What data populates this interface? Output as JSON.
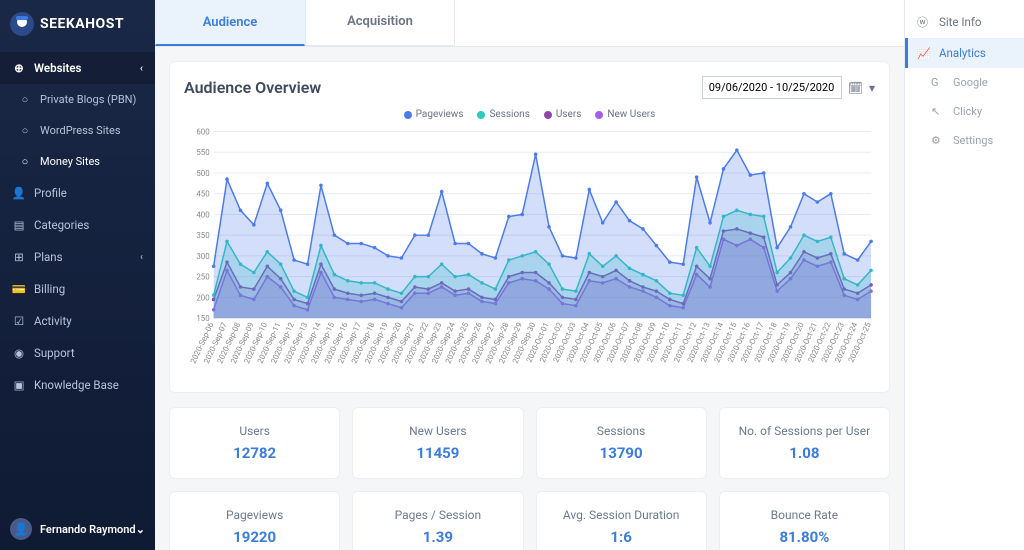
{
  "brand": "SEEKAHOST",
  "sidebar": {
    "websites_label": "Websites",
    "items": [
      {
        "label": "Private Blogs (PBN)",
        "icon": "○"
      },
      {
        "label": "WordPress Sites",
        "icon": "○"
      },
      {
        "label": "Money Sites",
        "icon": "○",
        "active": true
      }
    ],
    "nav": [
      {
        "label": "Profile",
        "icon": "👤"
      },
      {
        "label": "Categories",
        "icon": "▤"
      },
      {
        "label": "Plans",
        "icon": "⊞",
        "expandable": true
      },
      {
        "label": "Billing",
        "icon": "💳"
      },
      {
        "label": "Activity",
        "icon": "☑"
      },
      {
        "label": "Support",
        "icon": "◉"
      },
      {
        "label": "Knowledge Base",
        "icon": "▣"
      }
    ],
    "user": "Fernando Raymond"
  },
  "tabs": [
    {
      "label": "Audience",
      "active": true
    },
    {
      "label": "Acquisition"
    }
  ],
  "overview": {
    "title": "Audience Overview",
    "date_range": "09/06/2020 - 10/25/2020"
  },
  "chart": {
    "type": "line-area",
    "ylim": [
      150,
      600
    ],
    "ytick_step": 50,
    "background_color": "#ffffff",
    "grid_color": "#e8ebf0",
    "label_fontsize": 8,
    "series": [
      {
        "name": "Pageviews",
        "color": "#4b7bec"
      },
      {
        "name": "Sessions",
        "color": "#2bcbba"
      },
      {
        "name": "Users",
        "color": "#8e44ad"
      },
      {
        "name": "New Users",
        "color": "#a55eea"
      }
    ],
    "dates": [
      "2020-Sep-06",
      "2020-Sep-07",
      "2020-Sep-08",
      "2020-Sep-09",
      "2020-Sep-10",
      "2020-Sep-11",
      "2020-Sep-12",
      "2020-Sep-13",
      "2020-Sep-14",
      "2020-Sep-15",
      "2020-Sep-16",
      "2020-Sep-17",
      "2020-Sep-18",
      "2020-Sep-19",
      "2020-Sep-20",
      "2020-Sep-21",
      "2020-Sep-22",
      "2020-Sep-23",
      "2020-Sep-24",
      "2020-Sep-25",
      "2020-Sep-26",
      "2020-Sep-27",
      "2020-Sep-28",
      "2020-Sep-29",
      "2020-Sep-30",
      "2020-Oct-01",
      "2020-Oct-02",
      "2020-Oct-03",
      "2020-Oct-04",
      "2020-Oct-05",
      "2020-Oct-06",
      "2020-Oct-07",
      "2020-Oct-08",
      "2020-Oct-09",
      "2020-Oct-10",
      "2020-Oct-11",
      "2020-Oct-12",
      "2020-Oct-13",
      "2020-Oct-14",
      "2020-Oct-15",
      "2020-Oct-16",
      "2020-Oct-17",
      "2020-Oct-18",
      "2020-Oct-19",
      "2020-Oct-20",
      "2020-Oct-21",
      "2020-Oct-22",
      "2020-Oct-23",
      "2020-Oct-24",
      "2020-Oct-25"
    ],
    "values": {
      "Pageviews": [
        275,
        485,
        410,
        375,
        475,
        410,
        290,
        280,
        470,
        350,
        330,
        330,
        320,
        300,
        295,
        350,
        350,
        455,
        330,
        330,
        305,
        295,
        395,
        400,
        545,
        370,
        300,
        295,
        460,
        380,
        430,
        385,
        365,
        325,
        285,
        280,
        490,
        380,
        510,
        555,
        495,
        500,
        320,
        370,
        450,
        430,
        450,
        305,
        290,
        335
      ],
      "Sessions": [
        205,
        335,
        280,
        260,
        310,
        280,
        215,
        200,
        325,
        255,
        240,
        235,
        235,
        220,
        210,
        250,
        250,
        280,
        250,
        255,
        235,
        220,
        290,
        300,
        310,
        280,
        220,
        215,
        305,
        275,
        300,
        270,
        255,
        240,
        210,
        205,
        320,
        275,
        395,
        410,
        400,
        395,
        260,
        295,
        350,
        335,
        345,
        245,
        230,
        265
      ],
      "Users": [
        195,
        285,
        225,
        220,
        275,
        245,
        195,
        185,
        280,
        220,
        210,
        205,
        210,
        200,
        190,
        225,
        220,
        235,
        215,
        220,
        200,
        195,
        250,
        260,
        260,
        235,
        200,
        195,
        260,
        250,
        265,
        240,
        225,
        215,
        195,
        185,
        275,
        245,
        360,
        365,
        355,
        345,
        230,
        260,
        310,
        295,
        305,
        220,
        210,
        230
      ],
      "New Users": [
        170,
        265,
        205,
        195,
        250,
        225,
        180,
        170,
        260,
        200,
        195,
        190,
        195,
        185,
        175,
        210,
        210,
        225,
        205,
        210,
        190,
        185,
        235,
        245,
        240,
        220,
        185,
        180,
        240,
        235,
        245,
        225,
        215,
        200,
        180,
        175,
        255,
        225,
        340,
        325,
        340,
        320,
        215,
        245,
        290,
        275,
        285,
        205,
        195,
        215
      ]
    }
  },
  "stats": [
    {
      "label": "Users",
      "value": "12782"
    },
    {
      "label": "New Users",
      "value": "11459"
    },
    {
      "label": "Sessions",
      "value": "13790"
    },
    {
      "label": "No. of Sessions per User",
      "value": "1.08"
    },
    {
      "label": "Pageviews",
      "value": "19220"
    },
    {
      "label": "Pages / Session",
      "value": "1.39"
    },
    {
      "label": "Avg. Session Duration",
      "value": "1:6"
    },
    {
      "label": "Bounce Rate",
      "value": "81.80%"
    }
  ],
  "rightbar": {
    "items": [
      {
        "label": "Site Info",
        "icon": "ⓦ"
      },
      {
        "label": "Analytics",
        "icon": "📈",
        "active": true
      },
      {
        "label": "Google",
        "icon": "G",
        "sub": true
      },
      {
        "label": "Clicky",
        "icon": "↖",
        "sub": true
      },
      {
        "label": "Settings",
        "icon": "⚙",
        "sub": true
      }
    ]
  }
}
